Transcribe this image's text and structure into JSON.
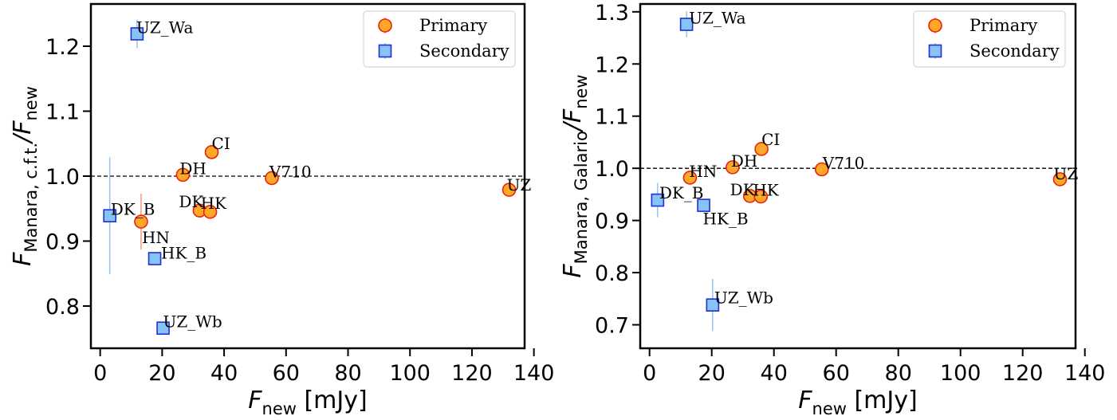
{
  "colors": {
    "primary_fill": "#ffa726",
    "primary_edge": "#e8230f",
    "secondary_fill": "#87c4f5",
    "secondary_edge": "#1f30d6",
    "errorbar_primary": "#f08060",
    "errorbar_secondary": "#78b8f0"
  },
  "chart_data": [
    {
      "type": "scatter",
      "xlabel": {
        "main": "F",
        "sub": "new",
        "unit": " [mJy]"
      },
      "ylabel": {
        "main": "F",
        "sub": "Manara, c.f.t.",
        "suffix": "/F",
        "sub2": "new"
      },
      "xlim": [
        -3,
        137
      ],
      "ylim": [
        0.735,
        1.265
      ],
      "xticks": [
        0,
        20,
        40,
        60,
        80,
        100,
        120,
        140
      ],
      "yticks": [
        0.8,
        0.9,
        1.0,
        1.1,
        1.2
      ],
      "ytick_labels": [
        "0.8",
        "0.9",
        "1.0",
        "1.1",
        "1.2"
      ],
      "reference_line": 1.0,
      "legend": {
        "position": "top-right",
        "entries": [
          "Primary",
          "Secondary"
        ]
      },
      "series": [
        {
          "name": "Primary",
          "marker": "circle",
          "points": [
            {
              "label": "CI",
              "x": 36.0,
              "y": 1.037,
              "yerr": 0
            },
            {
              "label": "DH",
              "x": 26.7,
              "y": 1.002,
              "yerr": 0
            },
            {
              "label": "V710",
              "x": 55.4,
              "y": 0.997,
              "yerr": 0
            },
            {
              "label": "UZ",
              "x": 132.0,
              "y": 0.979,
              "yerr": 0
            },
            {
              "label": "DK",
              "x": 32.1,
              "y": 0.947,
              "yerr": 0
            },
            {
              "label": "HK",
              "x": 35.5,
              "y": 0.945,
              "yerr": 0
            },
            {
              "label": "HN",
              "x": 13.2,
              "y": 0.93,
              "yerr": 0.043
            }
          ]
        },
        {
          "name": "Secondary",
          "marker": "square",
          "points": [
            {
              "label": "UZ_Wa",
              "x": 11.9,
              "y": 1.219,
              "yerr": 0.022
            },
            {
              "label": "DK_B",
              "x": 3.1,
              "y": 0.939,
              "yerr": 0.09
            },
            {
              "label": "HK_B",
              "x": 17.6,
              "y": 0.873,
              "yerr": 0.01
            },
            {
              "label": "UZ_Wb",
              "x": 20.3,
              "y": 0.766,
              "yerr": 0.01
            }
          ]
        }
      ]
    },
    {
      "type": "scatter",
      "xlabel": {
        "main": "F",
        "sub": "new",
        "unit": " [mJy]"
      },
      "ylabel": {
        "main": "F",
        "sub": "Manara, Galario",
        "suffix": "/F",
        "sub2": "new"
      },
      "xlim": [
        -3,
        137
      ],
      "ylim": [
        0.655,
        1.315
      ],
      "xticks": [
        0,
        20,
        40,
        60,
        80,
        100,
        120,
        140
      ],
      "yticks": [
        0.7,
        0.8,
        0.9,
        1.0,
        1.1,
        1.2,
        1.3
      ],
      "ytick_labels": [
        "0.7",
        "0.8",
        "0.9",
        "1.0",
        "1.1",
        "1.2",
        "1.3"
      ],
      "reference_line": 1.0,
      "legend": {
        "position": "top-right",
        "entries": [
          "Primary",
          "Secondary"
        ]
      },
      "series": [
        {
          "name": "Primary",
          "marker": "circle",
          "points": [
            {
              "label": "CI",
              "x": 36.0,
              "y": 1.037,
              "yerr": 0
            },
            {
              "label": "DH",
              "x": 26.7,
              "y": 1.002,
              "yerr": 0
            },
            {
              "label": "V710",
              "x": 55.4,
              "y": 0.998,
              "yerr": 0
            },
            {
              "label": "UZ",
              "x": 132.0,
              "y": 0.979,
              "yerr": 0
            },
            {
              "label": "HN",
              "x": 13.0,
              "y": 0.982,
              "yerr": 0
            },
            {
              "label": "DK",
              "x": 32.3,
              "y": 0.947,
              "yerr": 0
            },
            {
              "label": "HK",
              "x": 35.8,
              "y": 0.946,
              "yerr": 0
            }
          ]
        },
        {
          "name": "Secondary",
          "marker": "square",
          "points": [
            {
              "label": "UZ_Wa",
              "x": 11.9,
              "y": 1.276,
              "yerr": 0.025
            },
            {
              "label": "DK_B",
              "x": 2.6,
              "y": 0.939,
              "yerr": 0.033
            },
            {
              "label": "HK_B",
              "x": 17.4,
              "y": 0.929,
              "yerr": 0.005
            },
            {
              "label": "UZ_Wb",
              "x": 20.3,
              "y": 0.738,
              "yerr": 0.05
            }
          ]
        }
      ]
    }
  ]
}
